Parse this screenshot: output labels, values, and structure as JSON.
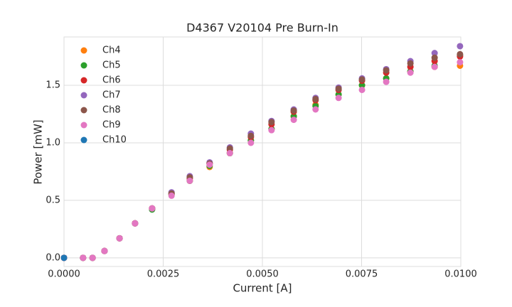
{
  "chart_data": {
    "type": "scatter",
    "title": "D4367 V20104 Pre Burn-In",
    "xlabel": "Current [A]",
    "ylabel": "Power [mW]",
    "x": [
      0,
      0.00048,
      0.00072,
      0.00102,
      0.0014,
      0.00179,
      0.00222,
      0.00271,
      0.00317,
      0.00367,
      0.00418,
      0.00471,
      0.00523,
      0.00579,
      0.00634,
      0.00692,
      0.00751,
      0.00812,
      0.00873,
      0.00934,
      0.00998
    ],
    "series": [
      {
        "name": "Ch4",
        "color": "#ff7f0e",
        "values": [
          0,
          0,
          0,
          0.06,
          0.17,
          0.3,
          0.43,
          0.55,
          0.67,
          0.79,
          0.91,
          1.02,
          1.12,
          1.23,
          1.33,
          1.42,
          1.5,
          1.56,
          1.62,
          1.66,
          1.67
        ]
      },
      {
        "name": "Ch5",
        "color": "#2ca02c",
        "values": [
          0,
          0,
          0,
          0.06,
          0.17,
          0.3,
          0.42,
          0.55,
          0.67,
          0.8,
          0.91,
          1.02,
          1.12,
          1.23,
          1.32,
          1.42,
          1.5,
          1.56,
          1.62,
          1.67,
          1.76
        ]
      },
      {
        "name": "Ch6",
        "color": "#d62728",
        "values": [
          0,
          0,
          0,
          0.06,
          0.17,
          0.3,
          0.43,
          0.56,
          0.69,
          0.82,
          0.94,
          1.05,
          1.16,
          1.27,
          1.37,
          1.46,
          1.54,
          1.61,
          1.66,
          1.71,
          1.75
        ]
      },
      {
        "name": "Ch7",
        "color": "#9467bd",
        "values": [
          0,
          0,
          0,
          0.06,
          0.17,
          0.3,
          0.43,
          0.57,
          0.71,
          0.83,
          0.96,
          1.08,
          1.19,
          1.29,
          1.39,
          1.48,
          1.56,
          1.64,
          1.71,
          1.78,
          1.84
        ]
      },
      {
        "name": "Ch8",
        "color": "#8c564b",
        "values": [
          0,
          0,
          0,
          0.06,
          0.17,
          0.3,
          0.43,
          0.56,
          0.7,
          0.82,
          0.95,
          1.06,
          1.18,
          1.28,
          1.38,
          1.47,
          1.55,
          1.63,
          1.69,
          1.74,
          1.77
        ]
      },
      {
        "name": "Ch9",
        "color": "#e377c2",
        "values": [
          0,
          0,
          0,
          0.06,
          0.17,
          0.3,
          0.43,
          0.54,
          0.67,
          0.81,
          0.91,
          1.0,
          1.11,
          1.2,
          1.29,
          1.39,
          1.46,
          1.53,
          1.61,
          1.66,
          1.7
        ]
      },
      {
        "name": "Ch10",
        "color": "#1f77b4",
        "values": [
          0,
          null,
          null,
          null,
          null,
          null,
          null,
          null,
          null,
          null,
          null,
          null,
          null,
          null,
          null,
          null,
          null,
          null,
          null,
          null,
          null
        ]
      }
    ],
    "xlim": [
      0,
      0.01
    ],
    "ylim": [
      -0.075,
      1.92
    ],
    "xticks": [
      {
        "value": 0,
        "label": "0.0000"
      },
      {
        "value": 0.0025,
        "label": "0.0025"
      },
      {
        "value": 0.005,
        "label": "0.0050"
      },
      {
        "value": 0.0075,
        "label": "0.0075"
      },
      {
        "value": 0.01,
        "label": "0.0100"
      }
    ],
    "yticks": [
      {
        "value": 0,
        "label": "0.0"
      },
      {
        "value": 0.5,
        "label": "0.5"
      },
      {
        "value": 1,
        "label": "1.0"
      },
      {
        "value": 1.5,
        "label": "1.5"
      }
    ],
    "grid": true,
    "legend": "upper-left"
  }
}
